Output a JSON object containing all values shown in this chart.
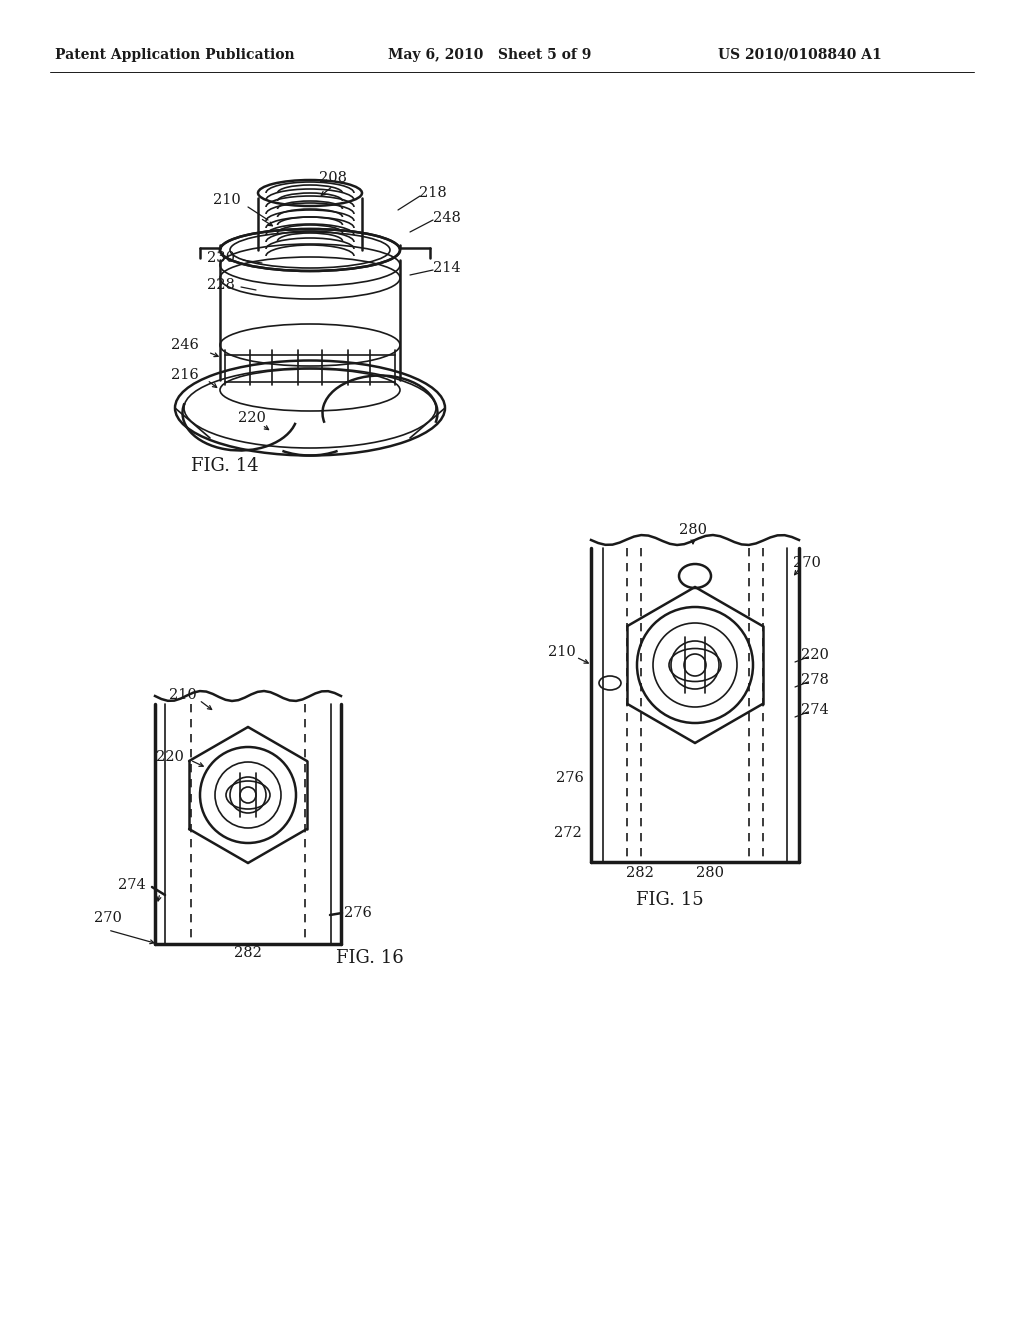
{
  "bg_color": "#ffffff",
  "line_color": "#1a1a1a",
  "header_left": "Patent Application Publication",
  "header_mid": "May 6, 2010   Sheet 5 of 9",
  "header_right": "US 2010/0108840 A1",
  "fig14_label": "FIG. 14",
  "fig15_label": "FIG. 15",
  "fig16_label": "FIG. 16",
  "font_size_header": 10,
  "font_size_label": 13,
  "font_size_ref": 10.5
}
